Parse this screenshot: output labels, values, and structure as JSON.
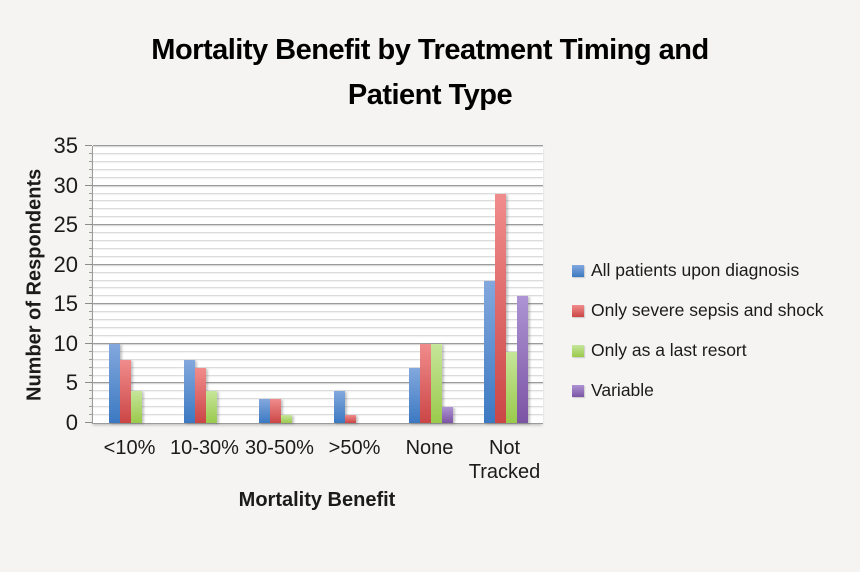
{
  "title": {
    "text": "Mortality Benefit by Treatment Timing and Patient Type",
    "lines": [
      "Mortality Benefit by Treatment Timing and",
      "Patient Type"
    ]
  },
  "chart_data": {
    "type": "bar",
    "title": "Mortality Benefit by Treatment Timing and Patient Type",
    "xlabel": "Mortality Benefit",
    "ylabel": "Number of Respondents",
    "categories": [
      "<10%",
      "10-30%",
      "30-50%",
      ">50%",
      "None",
      "Not Tracked"
    ],
    "series": [
      {
        "name": "All patients upon diagnosis",
        "color": "#4a80c6",
        "color_top": "#83a8dd",
        "color_bottom": "#3c79c2",
        "values": [
          10,
          8,
          3,
          4,
          7,
          18
        ]
      },
      {
        "name": "Only severe sepsis and shock",
        "color": "#d45555",
        "color_top": "#f18c8c",
        "color_bottom": "#cb4646",
        "values": [
          8,
          7,
          3,
          1,
          10,
          29
        ]
      },
      {
        "name": "Only as a last resort",
        "color": "#a5cf5a",
        "color_top": "#c6e59a",
        "color_bottom": "#9aca4c",
        "values": [
          4,
          4,
          1,
          0,
          10,
          9
        ]
      },
      {
        "name": "Variable",
        "color": "#8563ae",
        "color_top": "#ad94d3",
        "color_bottom": "#7c54a4",
        "values": [
          0,
          0,
          0,
          0,
          2,
          16
        ]
      }
    ],
    "ylim": [
      0,
      35
    ],
    "y_major_step": 5,
    "y_minor_step": 1,
    "y_tick_labels": [
      "0",
      "5",
      "10",
      "15",
      "20",
      "25",
      "30",
      "35"
    ],
    "grid": true,
    "legend_position": "right"
  }
}
